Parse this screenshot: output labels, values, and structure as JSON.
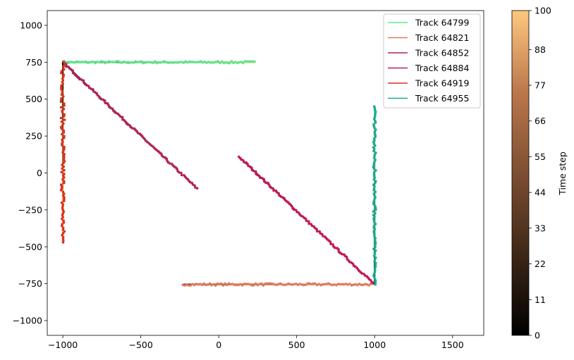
{
  "chart_data": {
    "type": "scatter",
    "title": "",
    "xlabel": "",
    "ylabel": "",
    "xlim": [
      -1100,
      1700
    ],
    "ylim": [
      -1100,
      1100
    ],
    "xticks": [
      -1000,
      -500,
      0,
      500,
      1000,
      1500
    ],
    "yticks": [
      -1000,
      -750,
      -500,
      -250,
      0,
      250,
      500,
      750,
      1000
    ],
    "grid": false,
    "legend_position": "upper right",
    "colormap": "copper",
    "colorbar": {
      "label": "Time step",
      "range": [
        0,
        100
      ],
      "ticks": [
        0,
        11,
        22,
        33,
        44,
        55,
        66,
        77,
        88,
        100
      ]
    },
    "series": [
      {
        "name": "Track 64799",
        "color": "#5ee68a",
        "start": [
          -1000,
          750
        ],
        "end": [
          230,
          750
        ],
        "noise": 7
      },
      {
        "name": "Track 64821",
        "color": "#e07a5f",
        "start": [
          -230,
          -755
        ],
        "end": [
          1000,
          -755
        ],
        "noise": 7
      },
      {
        "name": "Track 64852",
        "color": "#b0235a",
        "start": [
          -1000,
          750
        ],
        "end": [
          -140,
          -105
        ],
        "noise": 6
      },
      {
        "name": "Track 64884",
        "color": "#c2185b",
        "start": [
          130,
          110
        ],
        "end": [
          1000,
          -755
        ],
        "noise": 6
      },
      {
        "name": "Track 64919",
        "color": "#d9341a",
        "start": [
          -1000,
          750
        ],
        "end": [
          -1000,
          -470
        ],
        "noise": 12
      },
      {
        "name": "Track 64955",
        "color": "#15ad8f",
        "start": [
          1000,
          -755
        ],
        "end": [
          1000,
          450
        ],
        "noise": 8
      }
    ]
  }
}
